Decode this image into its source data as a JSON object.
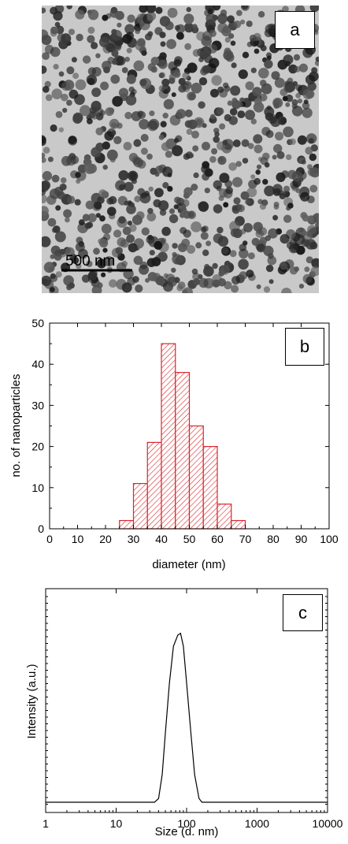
{
  "panels": {
    "a": {
      "label": "a",
      "scale_bar": "500 nm"
    },
    "b": {
      "label": "b"
    },
    "c": {
      "label": "c"
    }
  },
  "chart_data": [
    {
      "type": "bar",
      "panel": "b",
      "title": "",
      "xlabel": "diameter (nm)",
      "ylabel": "no. of nanoparticles",
      "xlim": [
        0,
        100
      ],
      "ylim": [
        0,
        50
      ],
      "xticks": [
        0,
        10,
        20,
        30,
        40,
        50,
        60,
        70,
        80,
        90,
        100
      ],
      "yticks": [
        0,
        10,
        20,
        30,
        40,
        50
      ],
      "bin_width": 5,
      "bins": [
        {
          "start": 25,
          "value": 2
        },
        {
          "start": 30,
          "value": 11
        },
        {
          "start": 35,
          "value": 21
        },
        {
          "start": 40,
          "value": 45
        },
        {
          "start": 45,
          "value": 38
        },
        {
          "start": 50,
          "value": 25
        },
        {
          "start": 55,
          "value": 20
        },
        {
          "start": 60,
          "value": 6
        },
        {
          "start": 65,
          "value": 2
        }
      ],
      "bar_color": "#d9262c",
      "grid": false
    },
    {
      "type": "line",
      "panel": "c",
      "title": "",
      "xlabel": "Size (d. nm)",
      "ylabel": "Intensity (a.u.)",
      "xscale": "log",
      "xlim": [
        1,
        10000
      ],
      "xticks": [
        1,
        10,
        100,
        1000,
        10000
      ],
      "ylim": [
        0,
        100
      ],
      "x": [
        1,
        35,
        40,
        45,
        50,
        57,
        65,
        75,
        82,
        90,
        100,
        115,
        130,
        150,
        165,
        10000
      ],
      "y": [
        0,
        0,
        2,
        15,
        38,
        65,
        85,
        91,
        92,
        85,
        65,
        38,
        15,
        2,
        0,
        0
      ],
      "line_color": "#000000",
      "grid": false
    }
  ]
}
